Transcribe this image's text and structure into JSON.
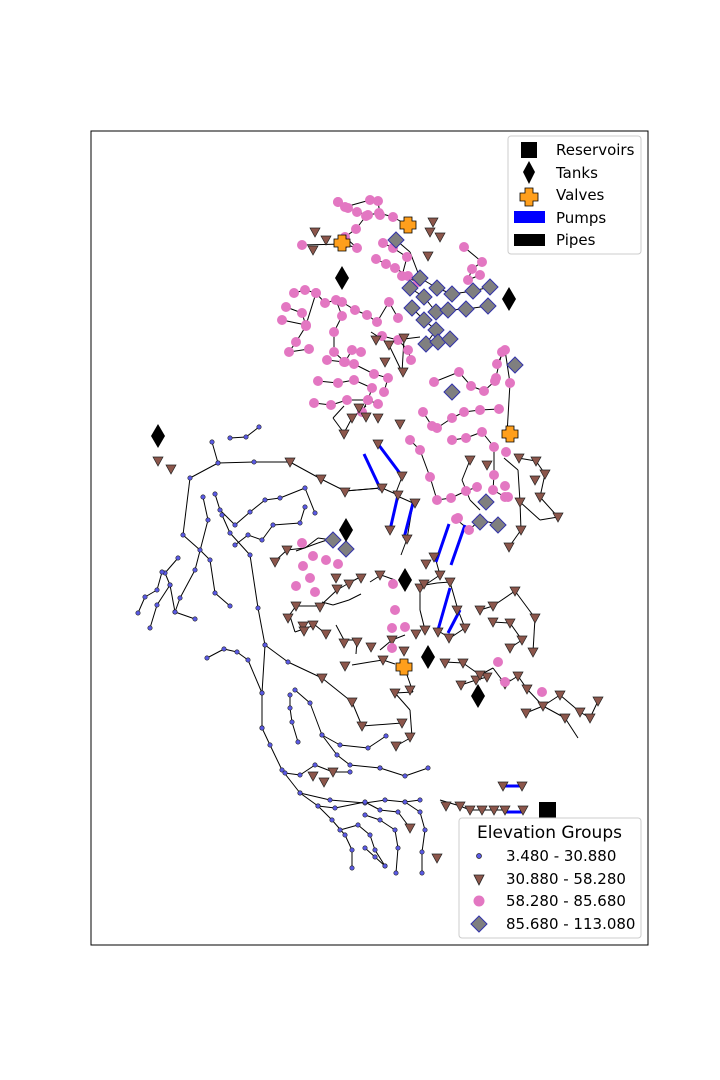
{
  "legend_components": {
    "items": [
      {
        "label": "Reservoirs",
        "icon": "square-icon"
      },
      {
        "label": "Tanks",
        "icon": "diamond-icon"
      },
      {
        "label": "Valves",
        "icon": "plus-icon"
      },
      {
        "label": "Pumps",
        "icon": "bar-icon"
      },
      {
        "label": "Pipes",
        "icon": "bar-icon"
      }
    ]
  },
  "legend_elevation": {
    "title": "Elevation Groups",
    "groups": [
      {
        "label": "3.480 - 30.880",
        "marker": "small-circle",
        "color": "#5a5ae6"
      },
      {
        "label": "30.880 - 58.280",
        "marker": "triangle-down",
        "color": "#8c564b"
      },
      {
        "label": "58.280 - 85.680",
        "marker": "circle",
        "color": "#e377c2"
      },
      {
        "label": "85.680 - 113.080",
        "marker": "diamond",
        "color": "#7f7f7f"
      }
    ]
  },
  "colors": {
    "pipe": "#000000",
    "pump": "#0000ff",
    "valve": "#ff9f1c",
    "tank": "#000000",
    "reservoir": "#000000"
  }
}
